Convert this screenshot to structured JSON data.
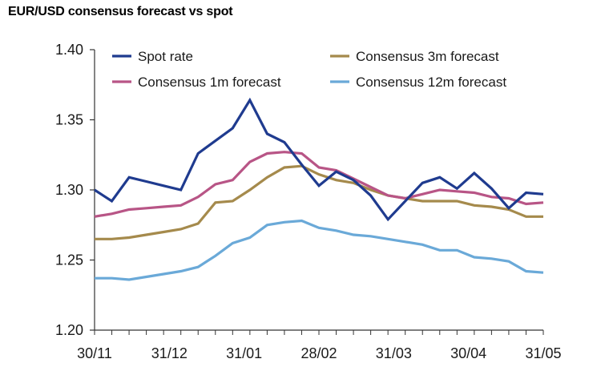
{
  "chart_data": {
    "type": "line",
    "title": "EUR/USD consensus forecast vs spot",
    "xlabel": "",
    "ylabel": "",
    "ylim": [
      1.2,
      1.4
    ],
    "yticks": [
      "1.20",
      "1.25",
      "1.30",
      "1.35",
      "1.40"
    ],
    "x_tick_labels": [
      "30/11",
      "31/12",
      "31/01",
      "28/02",
      "31/03",
      "30/04",
      "31/05"
    ],
    "legend_position": "top",
    "grid": false,
    "series": [
      {
        "name": "Spot rate",
        "color": "#1f3b8f",
        "values": [
          1.3,
          1.292,
          1.309,
          1.306,
          1.303,
          1.3,
          1.326,
          1.335,
          1.344,
          1.364,
          1.34,
          1.334,
          1.318,
          1.303,
          1.313,
          1.307,
          1.296,
          1.279,
          1.292,
          1.305,
          1.309,
          1.301,
          1.312,
          1.301,
          1.287,
          1.298,
          1.297
        ]
      },
      {
        "name": "Consensus 1m forecast",
        "color": "#b85586",
        "values": [
          1.281,
          1.283,
          1.286,
          1.287,
          1.288,
          1.289,
          1.295,
          1.304,
          1.307,
          1.32,
          1.326,
          1.327,
          1.326,
          1.316,
          1.314,
          1.308,
          1.302,
          1.296,
          1.294,
          1.297,
          1.3,
          1.299,
          1.298,
          1.295,
          1.294,
          1.29,
          1.291
        ]
      },
      {
        "name": "Consensus 3m forecast",
        "color": "#a58a4c",
        "values": [
          1.265,
          1.265,
          1.266,
          1.268,
          1.27,
          1.272,
          1.276,
          1.291,
          1.292,
          1.3,
          1.309,
          1.316,
          1.317,
          1.311,
          1.307,
          1.305,
          1.3,
          1.296,
          1.294,
          1.292,
          1.292,
          1.292,
          1.289,
          1.288,
          1.286,
          1.281,
          1.281
        ]
      },
      {
        "name": "Consensus 12m forecast",
        "color": "#6aa9d8",
        "values": [
          1.237,
          1.237,
          1.236,
          1.238,
          1.24,
          1.242,
          1.245,
          1.253,
          1.262,
          1.266,
          1.275,
          1.277,
          1.278,
          1.273,
          1.271,
          1.268,
          1.267,
          1.265,
          1.263,
          1.261,
          1.257,
          1.257,
          1.252,
          1.251,
          1.249,
          1.242,
          1.241
        ]
      }
    ]
  }
}
